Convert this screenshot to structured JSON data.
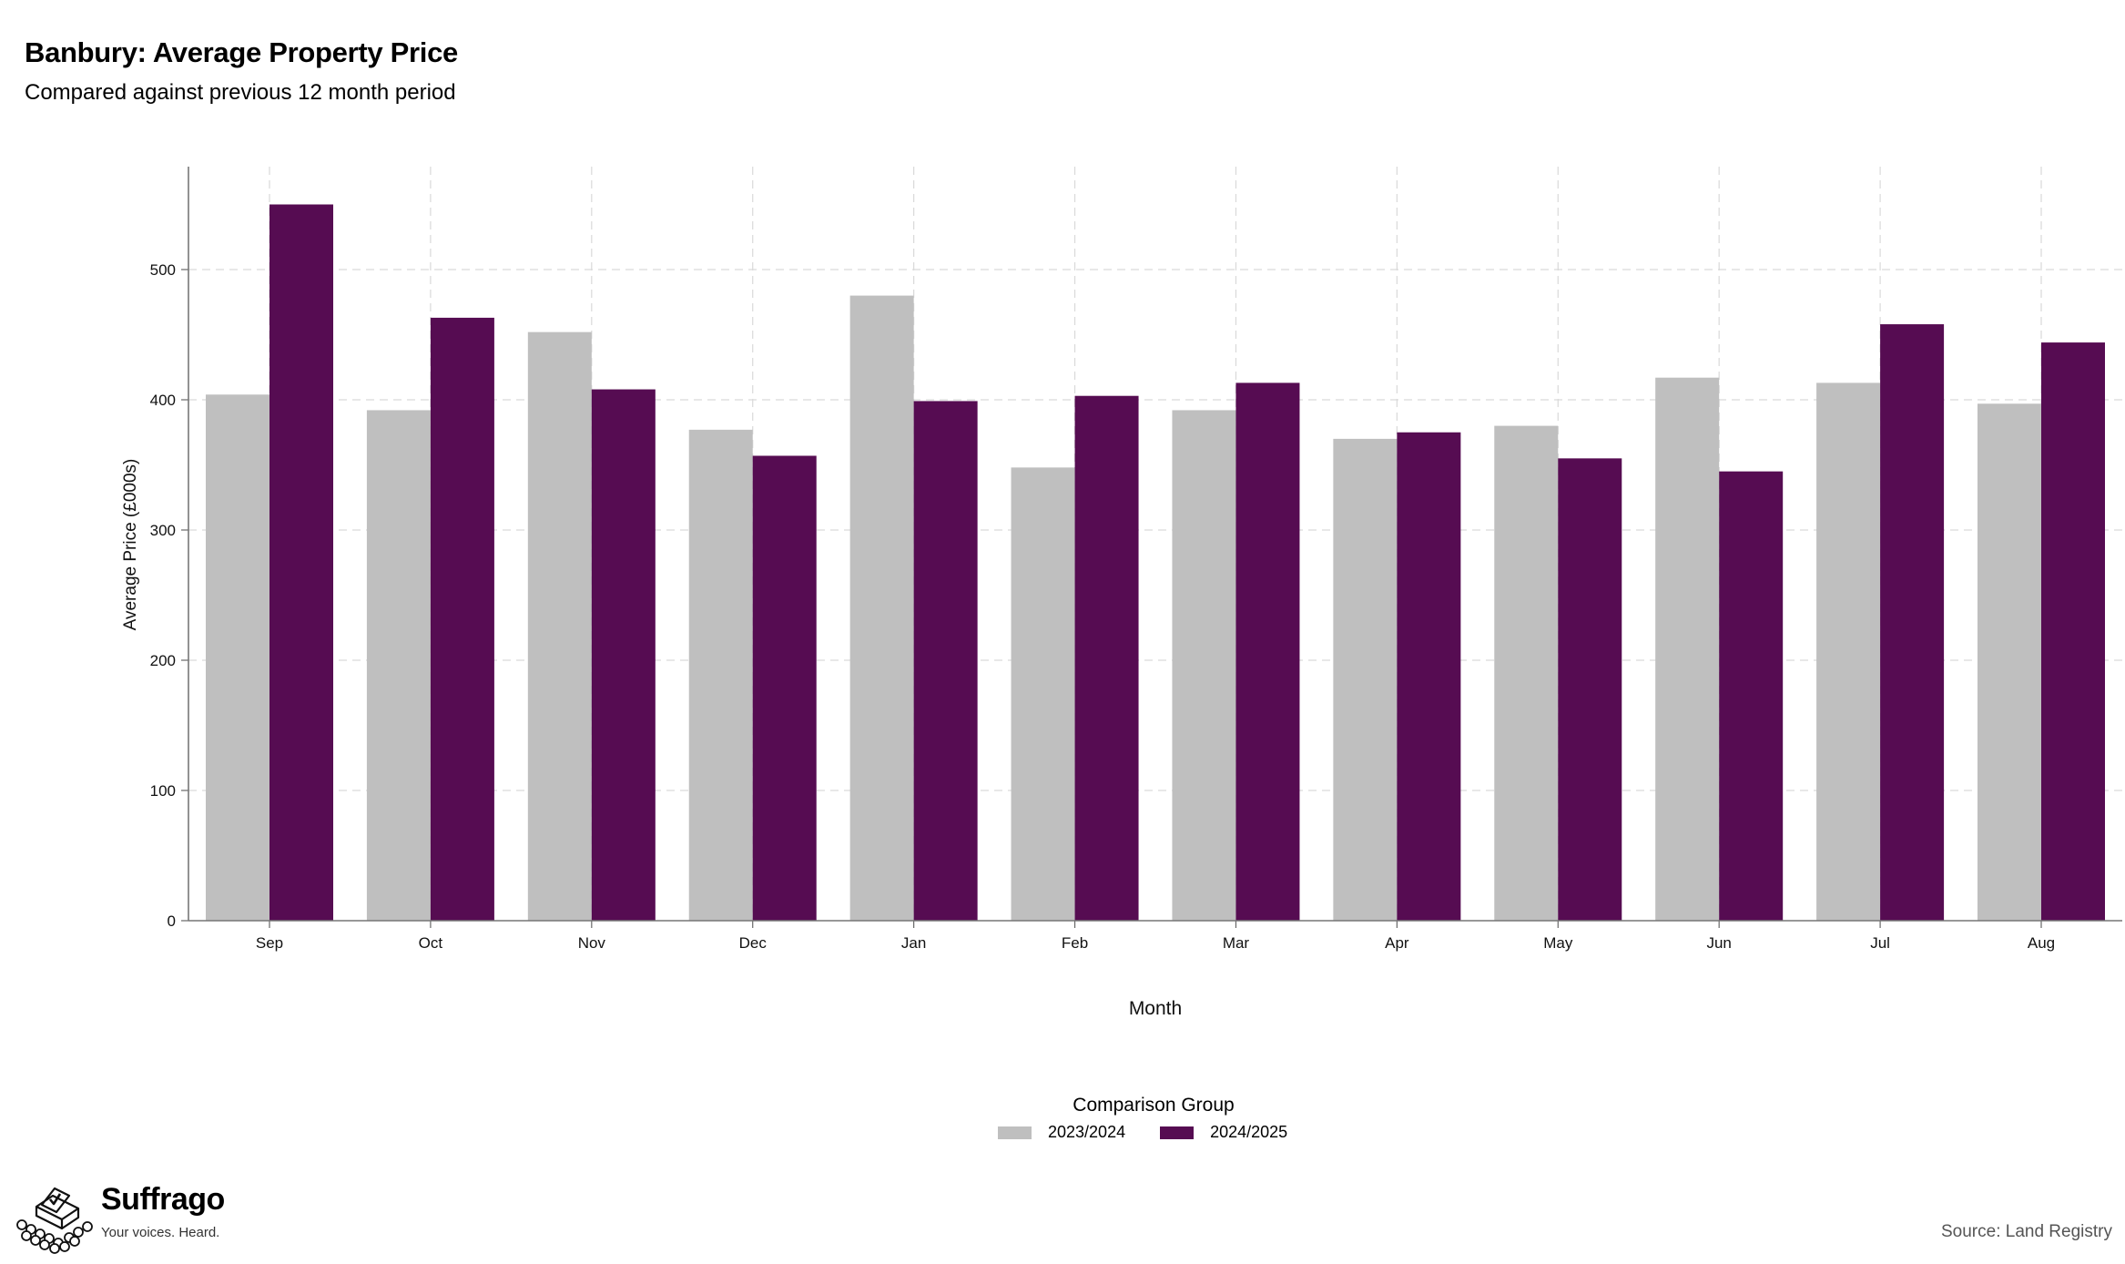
{
  "header": {
    "title": "Banbury: Average Property Price",
    "subtitle": "Compared against previous 12 month period"
  },
  "chart_data": {
    "type": "bar",
    "categories": [
      "Sep",
      "Oct",
      "Nov",
      "Dec",
      "Jan",
      "Feb",
      "Mar",
      "Apr",
      "May",
      "Jun",
      "Jul",
      "Aug"
    ],
    "series": [
      {
        "name": "2023/2024",
        "color": "#bfbfbf",
        "values": [
          404,
          392,
          452,
          377,
          480,
          348,
          392,
          370,
          380,
          417,
          413,
          397
        ]
      },
      {
        "name": "2024/2025",
        "color": "#560c52",
        "values": [
          550,
          463,
          408,
          357,
          399,
          403,
          413,
          375,
          355,
          345,
          458,
          444
        ]
      }
    ],
    "xlabel": "Month",
    "ylabel": "Average Price (£000s)",
    "ylim": [
      0,
      580
    ],
    "yticks": [
      0,
      100,
      200,
      300,
      400,
      500
    ],
    "grid": true,
    "legend_title": "Comparison Group",
    "legend_position": "bottom"
  },
  "footer": {
    "brand": "Suffrago",
    "tagline": "Your voices. Heard.",
    "source": "Source: Land Registry"
  }
}
